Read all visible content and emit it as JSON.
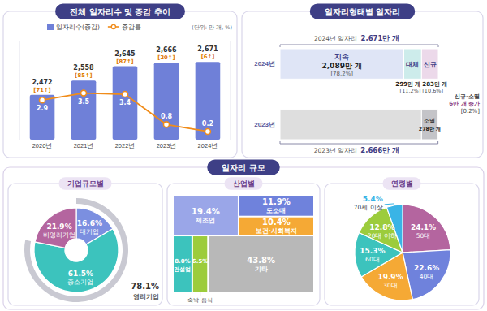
{
  "section_title": "일자리 규모",
  "chart_data": [
    {
      "type": "bar",
      "title": "전체 일자리수 및 증감 추이",
      "subtitle": "(단위: 만 개, %)",
      "categories": [
        "2020년",
        "2021년",
        "2022년",
        "2023년",
        "2024년"
      ],
      "series": [
        {
          "name": "일자리수(증감)",
          "type": "bar",
          "color": "#6f80d8",
          "values": [
            2472,
            2558,
            2645,
            2666,
            2671
          ],
          "value_labels": [
            "2,472",
            "2,558",
            "2,645",
            "2,666",
            "2,671"
          ],
          "change_labels": [
            "[71↑]",
            "[85↑]",
            "[87↑]",
            "[20↑]",
            "[6↑]"
          ]
        },
        {
          "name": "증감률",
          "type": "line",
          "axis": "y2",
          "color": "#f08c1a",
          "marker": "circle",
          "values": [
            2.9,
            3.5,
            3.4,
            0.8,
            0.2
          ]
        }
      ],
      "ylim": [
        2200,
        2800
      ],
      "y2lim": [
        -0.5,
        8
      ],
      "data_labels": true,
      "tick_labels": "x",
      "legend": "top"
    },
    {
      "type": "bar",
      "orientation": "horizontal",
      "stacked": true,
      "title": "일자리형태별 일자리",
      "categories": [
        "2024년",
        "2023년"
      ],
      "series": [
        {
          "name": "지속",
          "color": "#dfe5f6",
          "values": [
            2089,
            null
          ],
          "value_labels": [
            "2,089만 개",
            null
          ],
          "share_labels": [
            "[78.2%]",
            null
          ]
        },
        {
          "name": "대체",
          "color": "#cdeceb",
          "values": [
            299,
            null
          ],
          "value_labels": [
            "299만 개",
            null
          ],
          "share_labels": [
            "[11.2%]",
            null
          ]
        },
        {
          "name": "신규",
          "color": "#ecd9ea",
          "values": [
            283,
            null
          ],
          "value_labels": [
            "283만 개",
            null
          ],
          "share_labels": [
            "[10.6%]",
            null
          ]
        },
        {
          "color": "#dedede",
          "values": [
            null,
            2388
          ]
        },
        {
          "name": "소멸",
          "color": "#c4c4c8",
          "values": [
            null,
            278
          ],
          "value_labels": [
            null,
            "278만 개"
          ]
        }
      ],
      "xlim": [
        0,
        2671
      ],
      "data_labels": true,
      "tick_labels": "y",
      "totals": [
        {
          "label": "2024년 일자리",
          "value": 2671,
          "value_label": "2,671만 개"
        },
        {
          "label": "2023년 일자리",
          "value": 2666,
          "value_label": "2,666만 개"
        }
      ],
      "net_change_note": [
        "신규-소멸",
        "6만 개 증가",
        "[0.2%]"
      ]
    },
    {
      "type": "donut",
      "title": "기업규모별",
      "categories": [
        "대기업",
        "중소기업",
        "비영리기업"
      ],
      "values": [
        16.6,
        61.5,
        21.9
      ],
      "value_labels": [
        "16.6%",
        "61.5%",
        "21.9%"
      ],
      "colors": [
        "#7b8fe0",
        "#3cc3bd",
        "#b4659f"
      ],
      "data_labels": true,
      "groups": [
        {
          "name": "영리기업",
          "value": 78.1,
          "value_label": "78.1%"
        }
      ]
    },
    {
      "type": "treemap",
      "title": "산업별",
      "categories": [
        "제조업",
        "도소매",
        "보건·사회복지",
        "건설업",
        "숙박·음식",
        "기타"
      ],
      "values": [
        19.4,
        11.9,
        10.4,
        8.0,
        6.5,
        43.8
      ],
      "value_labels": [
        "19.4%",
        "11.9%",
        "10.4%",
        "8.0%",
        "6.5%",
        "43.8%"
      ],
      "colors": [
        "#9aa6e8",
        "#6f82dc",
        "#f5a935",
        "#3cc3bd",
        "#9ccc3c",
        "#b8b8b8"
      ],
      "data_labels": true
    },
    {
      "type": "pie",
      "title": "연령별",
      "categories": [
        "50대",
        "40대",
        "30대",
        "60대",
        "20대 이하",
        "70세 이상"
      ],
      "values": [
        24.1,
        22.6,
        19.9,
        15.3,
        12.8,
        5.4
      ],
      "value_labels": [
        "24.1%",
        "22.6%",
        "19.9%",
        "15.3%",
        "12.8%",
        "5.4%"
      ],
      "colors": [
        "#b4659f",
        "#6f82dc",
        "#f5a935",
        "#3cc3bd",
        "#9ccc3c",
        "#39b4e6"
      ],
      "data_labels": true
    }
  ]
}
